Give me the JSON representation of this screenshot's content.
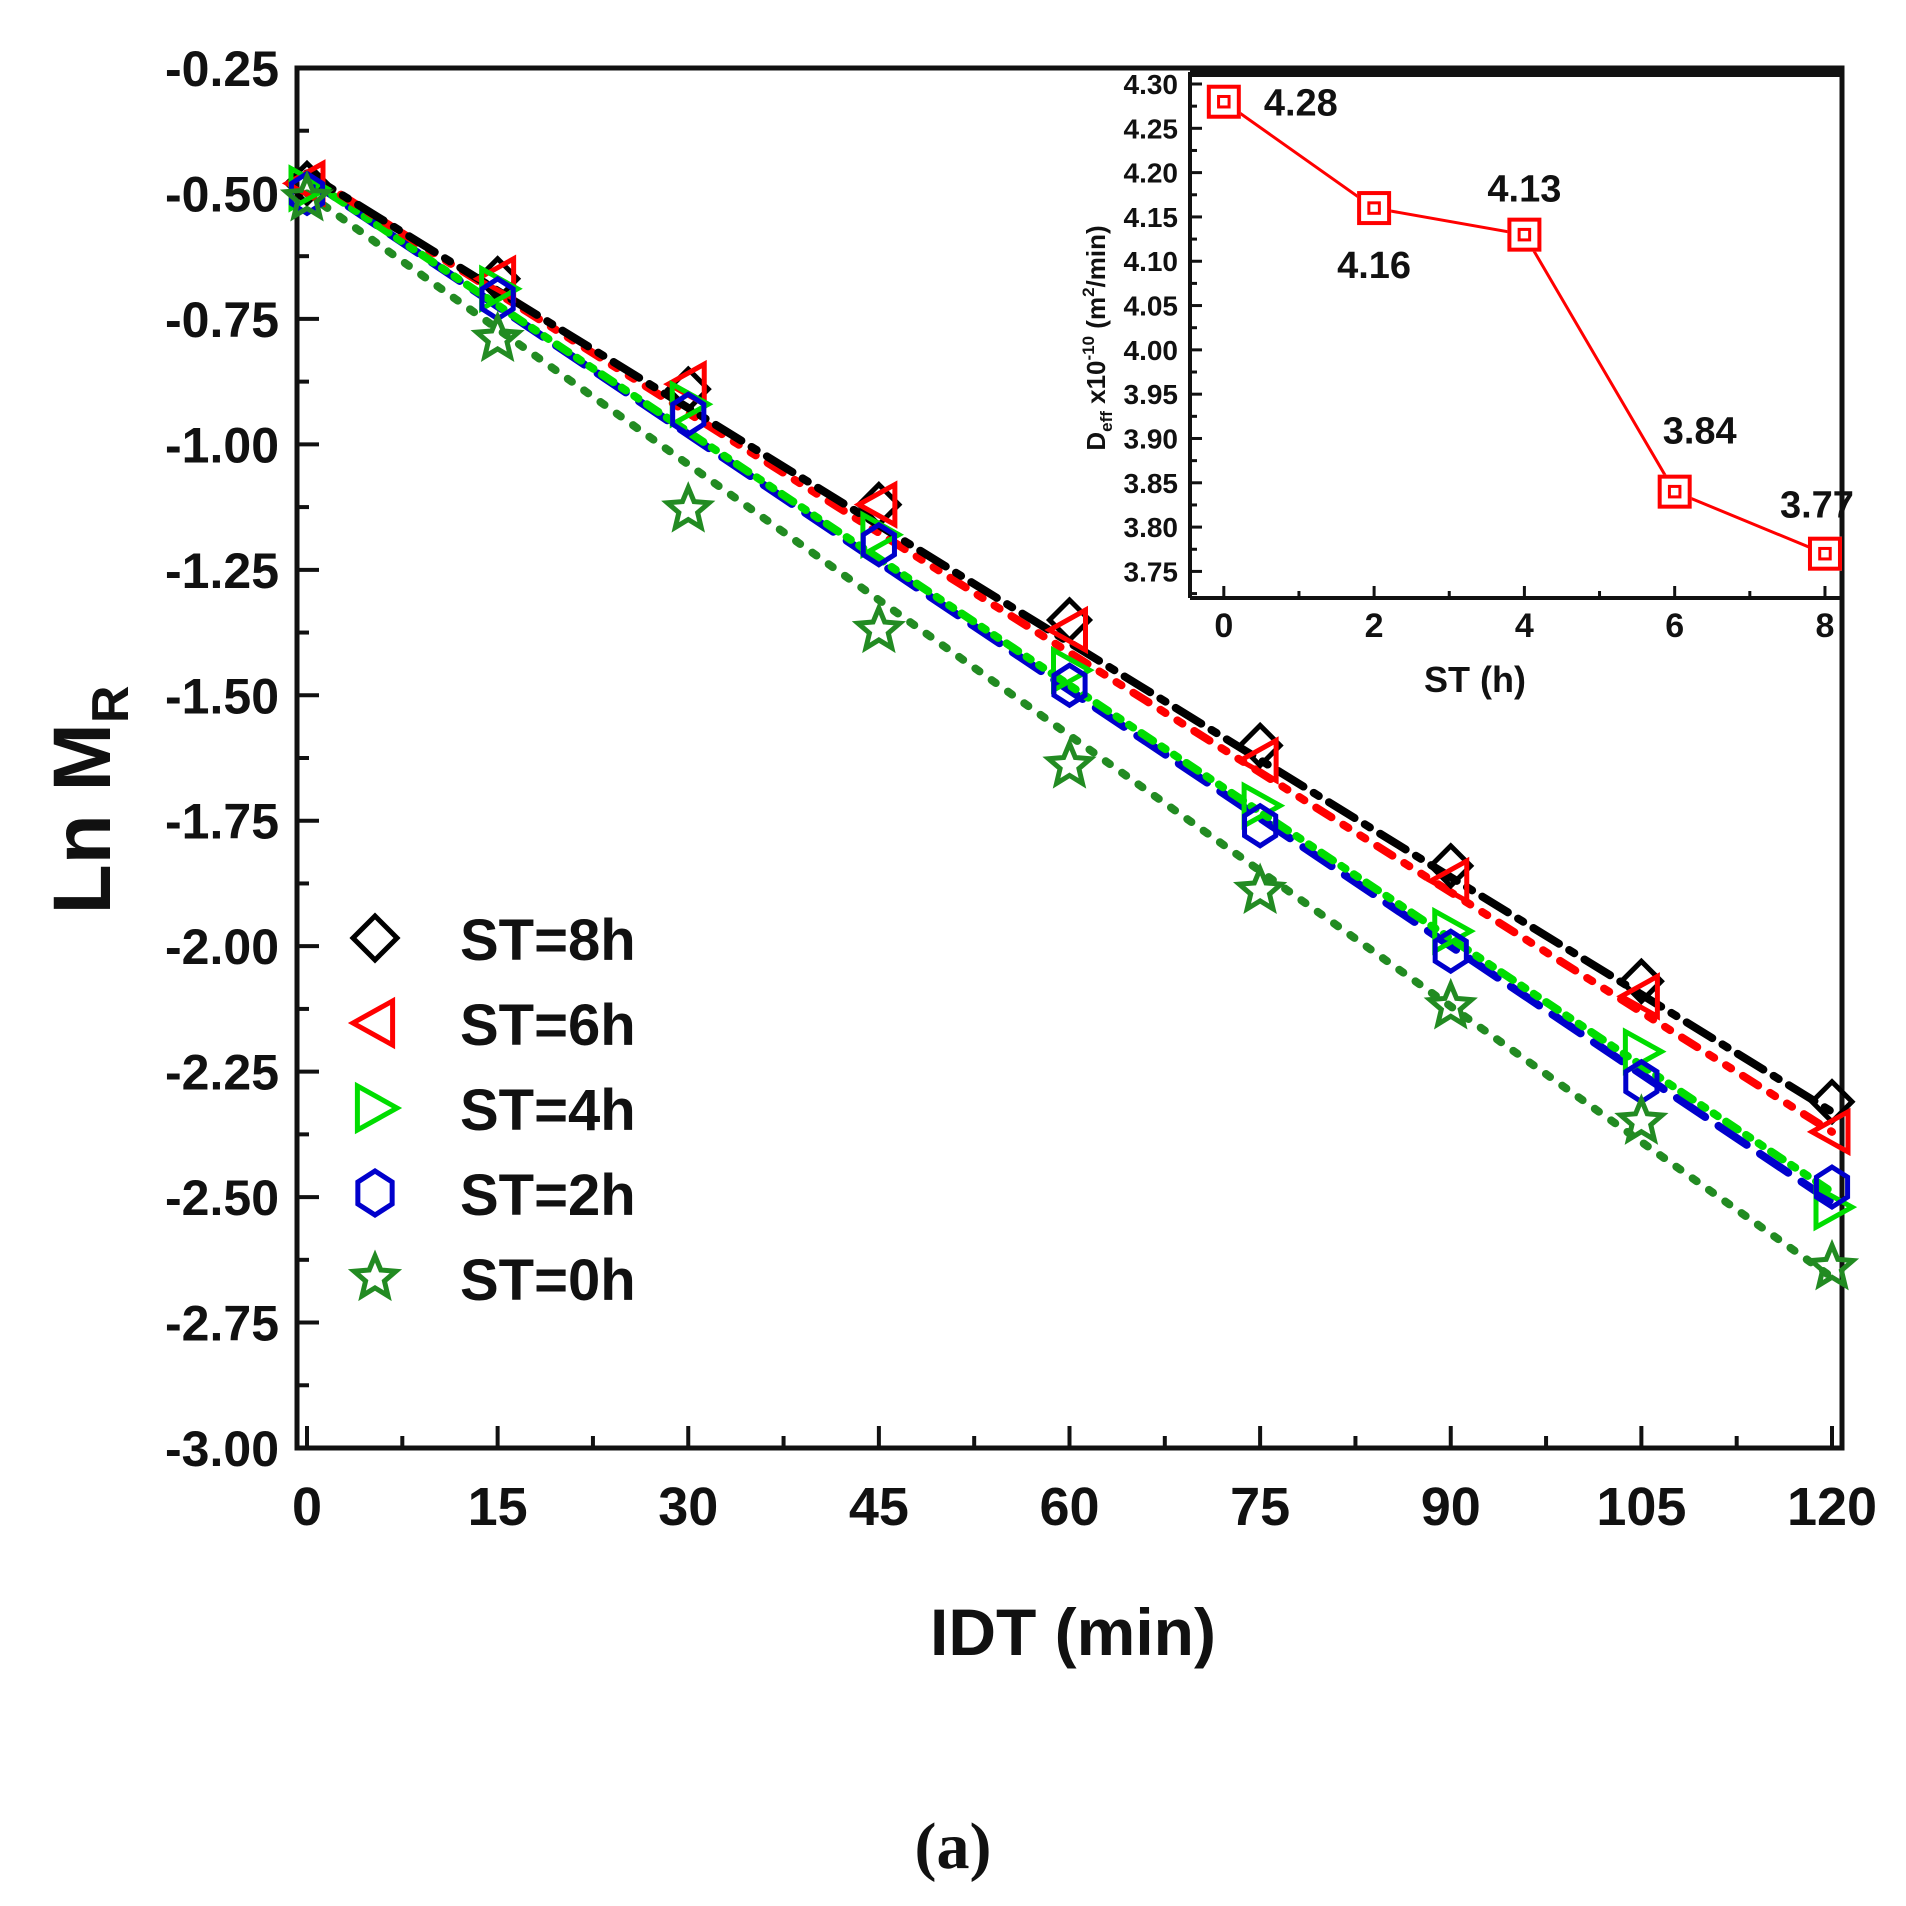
{
  "chart_data": [
    {
      "type": "line",
      "xlabel": "IDT (min)",
      "ylabel_main": "Ln M",
      "ylabel_sub": "R",
      "xlim": [
        0,
        120
      ],
      "ylim": [
        -3.0,
        -0.25
      ],
      "xticks": [
        0,
        15,
        30,
        45,
        60,
        75,
        90,
        105,
        120
      ],
      "yticks": [
        -0.25,
        -0.5,
        -0.75,
        -1.0,
        -1.25,
        -1.5,
        -1.75,
        -2.0,
        -2.25,
        -2.5,
        -2.75,
        -3.0
      ],
      "ytick_labels": [
        "-0.25",
        "-0.50",
        "-0.75",
        "-1.00",
        "-1.25",
        "-1.50",
        "-1.75",
        "-2.00",
        "-2.25",
        "-2.50",
        "-2.75",
        "-3.00"
      ],
      "xtick_labels": [
        "0",
        "15",
        "30",
        "45",
        "60",
        "75",
        "90",
        "105",
        "120"
      ],
      "legend_position": "bottom-left",
      "x": [
        0,
        15,
        30,
        45,
        60,
        75,
        90,
        105,
        120
      ],
      "series": [
        {
          "name": "ST=8h",
          "marker": "diamond",
          "color": "#000000",
          "dash": "dashdot",
          "values": [
            -0.48,
            -0.67,
            -0.89,
            -1.12,
            -1.35,
            -1.6,
            -1.84,
            -2.07,
            -2.31
          ],
          "fit": [
            -0.46,
            -2.33
          ]
        },
        {
          "name": "ST=6h",
          "marker": "triangle-left",
          "color": "#ff0000",
          "dash": "dashdotdot",
          "values": [
            -0.48,
            -0.67,
            -0.88,
            -1.12,
            -1.37,
            -1.63,
            -1.87,
            -2.1,
            -2.37
          ],
          "fit": [
            -0.46,
            -2.37
          ]
        },
        {
          "name": "ST=4h",
          "marker": "triangle-right",
          "color": "#00dd00",
          "dash": "dotdash",
          "values": [
            -0.49,
            -0.69,
            -0.92,
            -1.18,
            -1.45,
            -1.72,
            -1.97,
            -2.21,
            -2.52
          ],
          "fit": [
            -0.47,
            -2.49
          ]
        },
        {
          "name": "ST=2h",
          "marker": "hexagon",
          "color": "#0000cc",
          "dash": "dashed",
          "values": [
            -0.5,
            -0.71,
            -0.94,
            -1.2,
            -1.48,
            -1.76,
            -2.01,
            -2.27,
            -2.48
          ],
          "fit": [
            -0.47,
            -2.51
          ]
        },
        {
          "name": "ST=0h",
          "marker": "star",
          "color": "#228b22",
          "dash": "dotted",
          "values": [
            -0.51,
            -0.79,
            -1.13,
            -1.37,
            -1.64,
            -1.89,
            -2.12,
            -2.35,
            -2.64
          ],
          "fit": [
            -0.5,
            -2.66
          ]
        }
      ]
    },
    {
      "type": "line",
      "xlabel": "ST (h)",
      "ylabel_main": "D",
      "ylabel_sub": "eff",
      "ylabel_rest": " x10",
      "ylabel_sup": "-10",
      "ylabel_units": " (m",
      "ylabel_units_sup": "2",
      "ylabel_units_end": "/min)",
      "xlim": [
        -0.45,
        8.2
      ],
      "ylim": [
        3.72,
        4.3
      ],
      "xticks": [
        0,
        2,
        4,
        6,
        8
      ],
      "xtick_labels": [
        "0",
        "2",
        "4",
        "6",
        "8"
      ],
      "yticks": [
        3.75,
        3.8,
        3.85,
        3.9,
        3.95,
        4.0,
        4.05,
        4.1,
        4.15,
        4.2,
        4.25,
        4.3
      ],
      "ytick_labels": [
        "3.75",
        "3.80",
        "3.85",
        "3.90",
        "3.95",
        "4.00",
        "4.05",
        "4.10",
        "4.15",
        "4.20",
        "4.25",
        "4.30"
      ],
      "color": "#ff0000",
      "marker": "square",
      "x": [
        0,
        2,
        4,
        6,
        8
      ],
      "values": [
        4.28,
        4.16,
        4.13,
        3.84,
        3.77
      ],
      "data_labels": [
        "4.28",
        "4.16",
        "4.13",
        "3.84",
        "3.77"
      ]
    }
  ],
  "caption": "(a)"
}
